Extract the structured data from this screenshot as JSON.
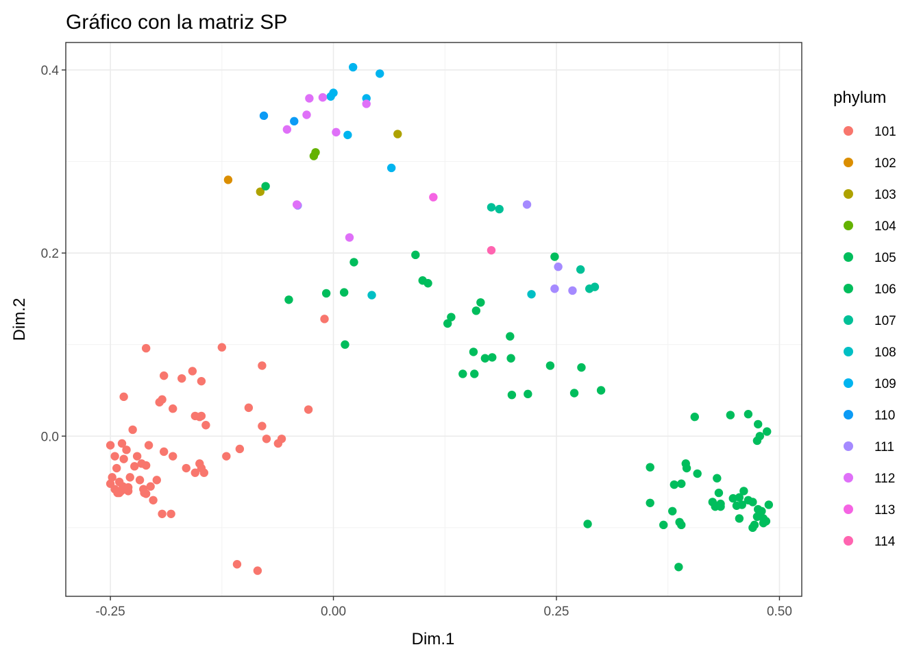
{
  "chart_data": {
    "type": "scatter",
    "title": "Gráfico con la matriz SP",
    "xlabel": "Dim.1",
    "ylabel": "Dim.2",
    "xlim": [
      -0.3,
      0.525
    ],
    "ylim": [
      -0.175,
      0.43
    ],
    "xticks": [
      -0.25,
      0.0,
      0.25,
      0.5
    ],
    "xtick_labels": [
      "-0.25",
      "0.00",
      "0.25",
      "0.50"
    ],
    "yticks": [
      0.0,
      0.2,
      0.4
    ],
    "ytick_labels": [
      "0.0",
      "0.2",
      "0.4"
    ],
    "grid": true,
    "legend": {
      "title": "phylum",
      "placement": "right"
    },
    "series": [
      {
        "name": "101",
        "color": "#F8766D",
        "points": [
          [
            -0.25,
            -0.052
          ],
          [
            -0.248,
            -0.045
          ],
          [
            -0.245,
            -0.058
          ],
          [
            -0.242,
            -0.062
          ],
          [
            -0.24,
            -0.05
          ],
          [
            -0.238,
            -0.06
          ],
          [
            -0.236,
            -0.055
          ],
          [
            -0.25,
            -0.01
          ],
          [
            -0.245,
            -0.022
          ],
          [
            -0.243,
            -0.035
          ],
          [
            -0.237,
            -0.008
          ],
          [
            -0.235,
            -0.025
          ],
          [
            -0.232,
            -0.015
          ],
          [
            -0.23,
            -0.056
          ],
          [
            -0.228,
            -0.045
          ],
          [
            -0.225,
            0.007
          ],
          [
            -0.223,
            -0.033
          ],
          [
            -0.22,
            -0.022
          ],
          [
            -0.217,
            -0.048
          ],
          [
            -0.215,
            -0.03
          ],
          [
            -0.213,
            -0.058
          ],
          [
            -0.212,
            -0.062
          ],
          [
            -0.21,
            -0.032
          ],
          [
            -0.207,
            -0.01
          ],
          [
            -0.205,
            -0.055
          ],
          [
            -0.202,
            -0.07
          ],
          [
            -0.198,
            -0.048
          ],
          [
            -0.192,
            -0.085
          ],
          [
            -0.182,
            -0.085
          ],
          [
            -0.19,
            -0.017
          ],
          [
            -0.18,
            -0.022
          ],
          [
            -0.165,
            -0.035
          ],
          [
            -0.155,
            -0.04
          ],
          [
            -0.15,
            -0.03
          ],
          [
            -0.148,
            -0.035
          ],
          [
            -0.145,
            -0.04
          ],
          [
            -0.143,
            0.012
          ],
          [
            -0.15,
            0.021
          ],
          [
            -0.155,
            0.022
          ],
          [
            -0.148,
            0.022
          ],
          [
            -0.12,
            -0.022
          ],
          [
            -0.105,
            -0.014
          ],
          [
            -0.095,
            0.031
          ],
          [
            -0.08,
            0.011
          ],
          [
            -0.075,
            -0.003
          ],
          [
            -0.062,
            -0.008
          ],
          [
            -0.058,
            -0.003
          ],
          [
            -0.028,
            0.029
          ],
          [
            -0.01,
            0.128
          ],
          [
            -0.125,
            0.097
          ],
          [
            -0.08,
            0.077
          ],
          [
            -0.235,
            0.043
          ],
          [
            -0.21,
            0.096
          ],
          [
            -0.19,
            0.066
          ],
          [
            -0.192,
            0.04
          ],
          [
            -0.195,
            0.037
          ],
          [
            -0.18,
            0.03
          ],
          [
            -0.17,
            0.063
          ],
          [
            -0.158,
            0.071
          ],
          [
            -0.148,
            0.06
          ],
          [
            -0.108,
            -0.14
          ],
          [
            -0.085,
            -0.147
          ],
          [
            -0.24,
            -0.062
          ],
          [
            -0.23,
            -0.06
          ],
          [
            -0.21,
            -0.063
          ]
        ]
      },
      {
        "name": "102",
        "color": "#DB8E00",
        "points": [
          [
            -0.118,
            0.28
          ]
        ]
      },
      {
        "name": "103",
        "color": "#AEA200",
        "points": [
          [
            -0.082,
            0.267
          ],
          [
            0.072,
            0.33
          ]
        ]
      },
      {
        "name": "104",
        "color": "#64B200",
        "points": [
          [
            -0.022,
            0.306
          ],
          [
            -0.02,
            0.31
          ]
        ]
      },
      {
        "name": "105",
        "color": "#00BD5C",
        "points": [
          [
            -0.076,
            0.273
          ],
          [
            0.248,
            0.196
          ]
        ]
      },
      {
        "name": "106",
        "color": "#00BD5C",
        "points": [
          [
            -0.05,
            0.149
          ],
          [
            -0.008,
            0.156
          ],
          [
            0.012,
            0.157
          ],
          [
            0.013,
            0.1
          ],
          [
            0.023,
            0.19
          ],
          [
            0.092,
            0.198
          ],
          [
            0.1,
            0.17
          ],
          [
            0.106,
            0.167
          ],
          [
            0.128,
            0.123
          ],
          [
            0.132,
            0.13
          ],
          [
            0.145,
            0.068
          ],
          [
            0.158,
            0.068
          ],
          [
            0.157,
            0.092
          ],
          [
            0.16,
            0.137
          ],
          [
            0.165,
            0.146
          ],
          [
            0.17,
            0.085
          ],
          [
            0.178,
            0.086
          ],
          [
            0.198,
            0.109
          ],
          [
            0.199,
            0.085
          ],
          [
            0.2,
            0.045
          ],
          [
            0.218,
            0.046
          ],
          [
            0.243,
            0.077
          ],
          [
            0.27,
            0.047
          ],
          [
            0.278,
            0.075
          ],
          [
            0.3,
            0.05
          ],
          [
            0.285,
            -0.096
          ],
          [
            0.355,
            -0.034
          ],
          [
            0.355,
            -0.073
          ],
          [
            0.37,
            -0.097
          ],
          [
            0.38,
            -0.082
          ],
          [
            0.382,
            -0.053
          ],
          [
            0.388,
            -0.094
          ],
          [
            0.39,
            -0.052
          ],
          [
            0.39,
            -0.097
          ],
          [
            0.387,
            -0.143
          ],
          [
            0.395,
            -0.03
          ],
          [
            0.396,
            -0.035
          ],
          [
            0.405,
            0.021
          ],
          [
            0.408,
            -0.041
          ],
          [
            0.425,
            -0.072
          ],
          [
            0.428,
            -0.077
          ],
          [
            0.43,
            -0.046
          ],
          [
            0.432,
            -0.062
          ],
          [
            0.434,
            -0.074
          ],
          [
            0.434,
            -0.077
          ],
          [
            0.445,
            0.023
          ],
          [
            0.448,
            -0.068
          ],
          [
            0.452,
            -0.076
          ],
          [
            0.455,
            -0.067
          ],
          [
            0.455,
            -0.09
          ],
          [
            0.458,
            -0.075
          ],
          [
            0.46,
            -0.06
          ],
          [
            0.465,
            -0.07
          ],
          [
            0.465,
            0.024
          ],
          [
            0.47,
            -0.1
          ],
          [
            0.472,
            -0.097
          ],
          [
            0.475,
            -0.088
          ],
          [
            0.476,
            0.013
          ],
          [
            0.475,
            -0.005
          ],
          [
            0.478,
            0.0
          ],
          [
            0.48,
            -0.082
          ],
          [
            0.482,
            -0.09
          ],
          [
            0.482,
            -0.095
          ],
          [
            0.485,
            -0.093
          ],
          [
            0.486,
            0.005
          ],
          [
            0.488,
            -0.075
          ],
          [
            0.476,
            -0.08
          ],
          [
            0.47,
            -0.072
          ]
        ]
      },
      {
        "name": "107",
        "color": "#00C097",
        "points": [
          [
            0.177,
            0.25
          ],
          [
            0.186,
            0.248
          ],
          [
            0.277,
            0.182
          ],
          [
            0.287,
            0.161
          ],
          [
            0.293,
            0.163
          ]
        ]
      },
      {
        "name": "108",
        "color": "#00BFC4",
        "points": [
          [
            0.043,
            0.154
          ],
          [
            0.222,
            0.155
          ]
        ]
      },
      {
        "name": "109",
        "color": "#00B4EF",
        "points": [
          [
            0.022,
            0.403
          ],
          [
            0.052,
            0.396
          ],
          [
            0.0,
            0.375
          ],
          [
            -0.003,
            0.371
          ],
          [
            0.037,
            0.369
          ],
          [
            0.016,
            0.329
          ],
          [
            0.065,
            0.293
          ]
        ]
      },
      {
        "name": "110",
        "color": "#0C9BF5",
        "points": [
          [
            -0.078,
            0.35
          ],
          [
            -0.044,
            0.344
          ]
        ]
      },
      {
        "name": "111",
        "color": "#A58AFF",
        "points": [
          [
            -0.04,
            0.252
          ],
          [
            0.217,
            0.253
          ],
          [
            0.252,
            0.185
          ],
          [
            0.248,
            0.161
          ],
          [
            0.268,
            0.159
          ]
        ]
      },
      {
        "name": "112",
        "color": "#DF70F8",
        "points": [
          [
            -0.052,
            0.335
          ],
          [
            -0.03,
            0.351
          ],
          [
            -0.027,
            0.369
          ],
          [
            -0.012,
            0.37
          ],
          [
            0.003,
            0.332
          ],
          [
            0.037,
            0.363
          ],
          [
            0.018,
            0.217
          ],
          [
            -0.041,
            0.253
          ]
        ]
      },
      {
        "name": "113",
        "color": "#F564E3",
        "points": [
          [
            0.112,
            0.261
          ]
        ]
      },
      {
        "name": "114",
        "color": "#FF64B0",
        "points": [
          [
            0.177,
            0.203
          ]
        ]
      }
    ]
  }
}
